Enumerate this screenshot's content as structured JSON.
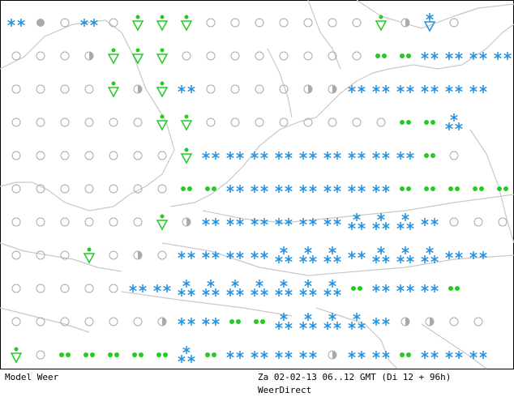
{
  "footer": {
    "model_label": "Model Weer",
    "date_label": "Za 02-02-13 06..12 GMT (Di 12 + 96h)",
    "source_label": "WeerDirect"
  },
  "colors": {
    "snow": "#1f8fe0",
    "rain": "#22cc22",
    "cloud": "#aaaaaa",
    "coast": "#c8c8c8",
    "frame": "#000000"
  },
  "legend_symbols": [
    "snow-icon",
    "rain-icon",
    "shower-rain-icon",
    "shower-snow-icon",
    "clear-icon",
    "partly-cloudy-icon",
    "overcast-icon"
  ],
  "grid_rows": [
    "SO_S_RRR_______RoB_",
    "___oRRR________rrSSSSS",
    "____RoRS____ooSSSSSS",
    "______RR________rrT",
    "_______RSSSSSSSSSr_",
    "_______rrSSSSSSSrrrrrS",
    "______RoSSSSSSTTTS___",
    "___R_o_SSSSTTTSTTTSS",
    "_____SSTTTTTTTrSSSr",
    "______oSSrrTTTTSoo__",
    "R_rrrrrTrSSSSoSSrSSS"
  ]
}
